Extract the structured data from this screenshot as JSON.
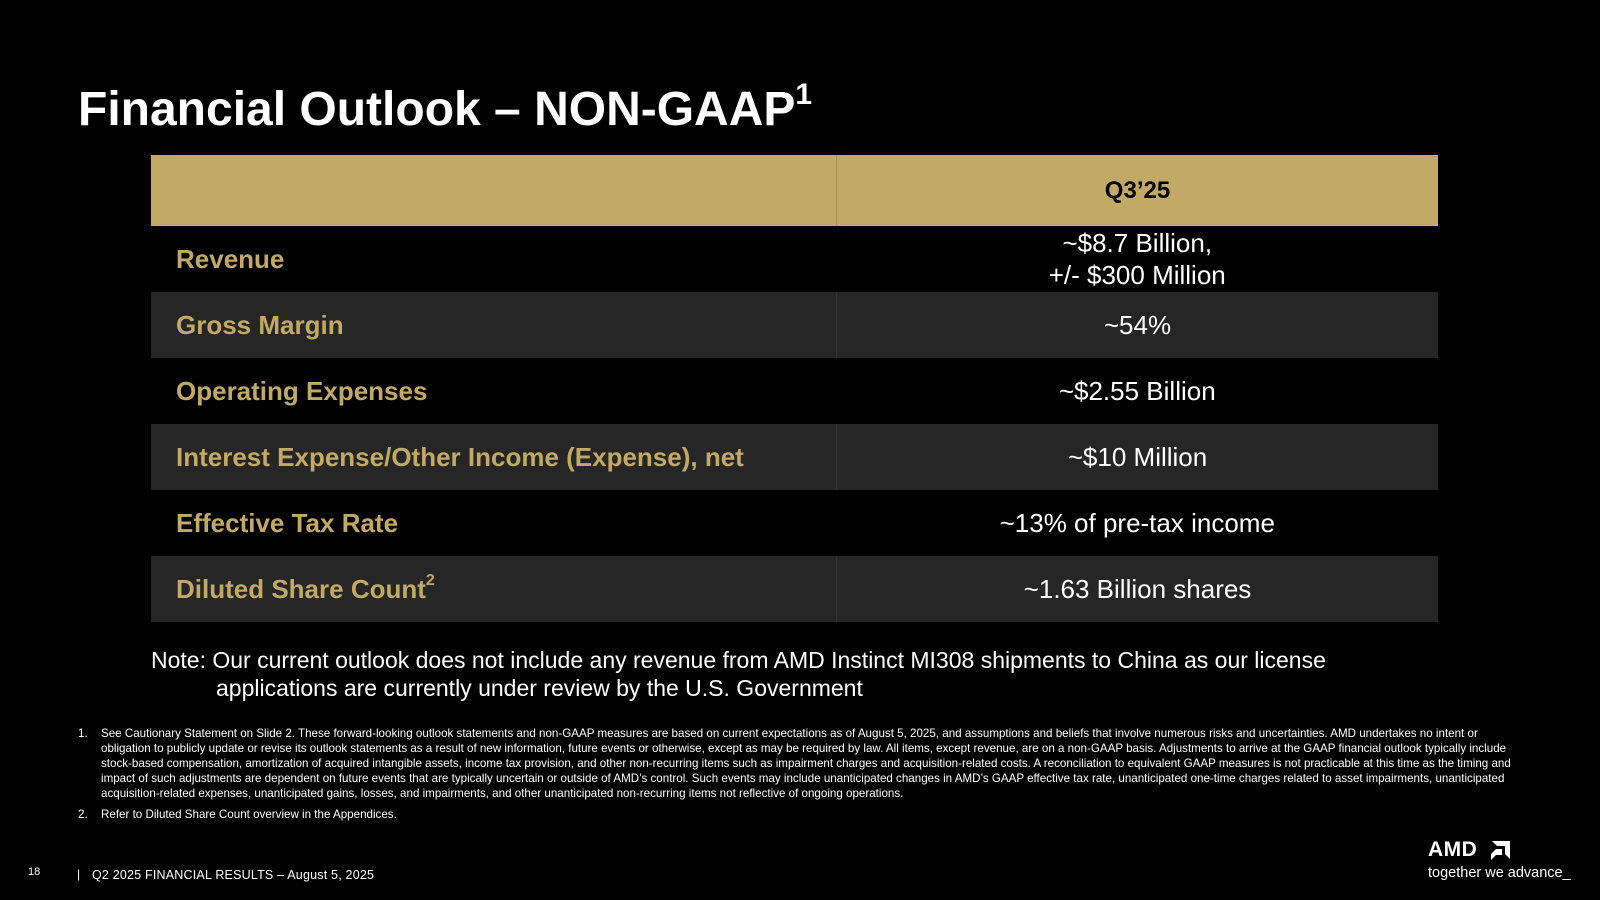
{
  "slide": {
    "title": "Financial Outlook – NON-GAAP",
    "title_sup": "1"
  },
  "table": {
    "header_left": "",
    "header_right": "Q3’25",
    "rows": [
      {
        "label": "Revenue",
        "label_sup": "",
        "value_line1": "~$8.7 Billion,",
        "value_line2": "+/- $300 Million"
      },
      {
        "label": "Gross Margin",
        "label_sup": "",
        "value_line1": "~54%",
        "value_line2": ""
      },
      {
        "label": "Operating Expenses",
        "label_sup": "",
        "value_line1": "~$2.55 Billion",
        "value_line2": ""
      },
      {
        "label": "Interest Expense/Other Income (Expense), net",
        "label_sup": "",
        "value_line1": "~$10 Million",
        "value_line2": ""
      },
      {
        "label": "Effective Tax Rate",
        "label_sup": "",
        "value_line1": "~13% of pre-tax income",
        "value_line2": ""
      },
      {
        "label": "Diluted Share Count",
        "label_sup": "2",
        "value_line1": "~1.63 Billion shares",
        "value_line2": ""
      }
    ]
  },
  "note": {
    "line1": "Note: Our current outlook does not include any revenue from AMD Instinct MI308 shipments to China as our license",
    "line2": "applications are currently under review by the U.S. Government"
  },
  "footnotes": [
    {
      "num": "1.",
      "text": "See Cautionary Statement on Slide 2. These forward-looking outlook statements and non-GAAP measures are based on current expectations as of August 5, 2025, and assumptions and beliefs that involve numerous risks and uncertainties. AMD undertakes no intent or obligation to publicly update or revise its outlook statements as a result of new information, future events or otherwise, except as may be required by law. All items, except revenue, are on a non-GAAP basis. Adjustments to arrive at the GAAP financial outlook typically include stock-based compensation, amortization of acquired intangible assets, income tax provision, and other non-recurring items such as impairment charges and acquisition-related costs. A reconciliation to equivalent GAAP measures is not practicable at this time as the timing and impact of such adjustments are dependent on future events that are typically uncertain or outside of AMD’s control. Such events may include unanticipated changes in AMD’s GAAP effective tax rate, unanticipated one-time charges related to asset impairments, unanticipated acquisition-related expenses, unanticipated gains, losses, and impairments, and other unanticipated non-recurring items not reflective of ongoing operations."
    },
    {
      "num": "2.",
      "text": "Refer to Diluted Share Count overview in the Appendices."
    }
  ],
  "footer": {
    "page_number": "18",
    "separator": "|",
    "text": "Q2 2025 FINANCIAL RESULTS – August 5, 2025"
  },
  "logo": {
    "wordmark": "AMD",
    "icon": "amd-arrow-icon",
    "tagline": "together we advance_"
  },
  "colors": {
    "background": "#000000",
    "gold": "#c2a965",
    "shaded_row": "#262626",
    "text": "#ffffff"
  }
}
